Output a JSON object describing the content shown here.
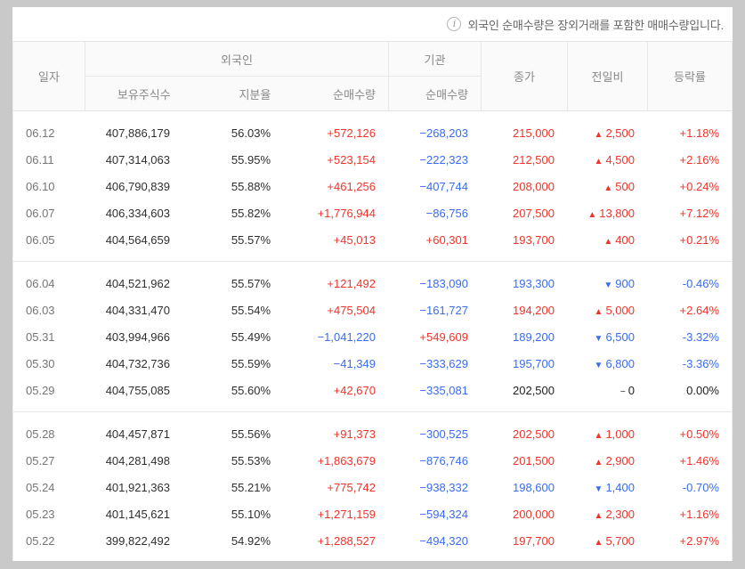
{
  "notice": {
    "icon_glyph": "i",
    "text": "외국인 순매수량은 장외거래를 포함한 매매수량입니다."
  },
  "colors": {
    "up": "#f0342a",
    "down": "#3a6cf3",
    "flat": "#222222"
  },
  "table": {
    "headers": {
      "date": "일자",
      "foreigner_group": "외국인",
      "institution_group": "기관",
      "shares_held": "보유주식수",
      "ownership_ratio": "지분율",
      "net_buy_foreigner": "순매수량",
      "net_buy_institution": "순매수량",
      "close": "종가",
      "change": "전일비",
      "change_rate": "등락률"
    },
    "symbols": {
      "up": "▲",
      "down": "▼",
      "flat": "−"
    },
    "groups": [
      {
        "rows": [
          {
            "date": "06.12",
            "shares": "407,886,179",
            "ratio": "56.03%",
            "foreign_net": {
              "text": "+572,126",
              "trend": "up"
            },
            "institution_net": {
              "text": "−268,203",
              "trend": "down"
            },
            "close": {
              "text": "215,000",
              "trend": "up"
            },
            "change": {
              "text": "2,500",
              "trend": "up"
            },
            "rate": {
              "text": "+1.18%",
              "trend": "up"
            }
          },
          {
            "date": "06.11",
            "shares": "407,314,063",
            "ratio": "55.95%",
            "foreign_net": {
              "text": "+523,154",
              "trend": "up"
            },
            "institution_net": {
              "text": "−222,323",
              "trend": "down"
            },
            "close": {
              "text": "212,500",
              "trend": "up"
            },
            "change": {
              "text": "4,500",
              "trend": "up"
            },
            "rate": {
              "text": "+2.16%",
              "trend": "up"
            }
          },
          {
            "date": "06.10",
            "shares": "406,790,839",
            "ratio": "55.88%",
            "foreign_net": {
              "text": "+461,256",
              "trend": "up"
            },
            "institution_net": {
              "text": "−407,744",
              "trend": "down"
            },
            "close": {
              "text": "208,000",
              "trend": "up"
            },
            "change": {
              "text": "500",
              "trend": "up"
            },
            "rate": {
              "text": "+0.24%",
              "trend": "up"
            }
          },
          {
            "date": "06.07",
            "shares": "406,334,603",
            "ratio": "55.82%",
            "foreign_net": {
              "text": "+1,776,944",
              "trend": "up"
            },
            "institution_net": {
              "text": "−86,756",
              "trend": "down"
            },
            "close": {
              "text": "207,500",
              "trend": "up"
            },
            "change": {
              "text": "13,800",
              "trend": "up"
            },
            "rate": {
              "text": "+7.12%",
              "trend": "up"
            }
          },
          {
            "date": "06.05",
            "shares": "404,564,659",
            "ratio": "55.57%",
            "foreign_net": {
              "text": "+45,013",
              "trend": "up"
            },
            "institution_net": {
              "text": "+60,301",
              "trend": "up"
            },
            "close": {
              "text": "193,700",
              "trend": "up"
            },
            "change": {
              "text": "400",
              "trend": "up"
            },
            "rate": {
              "text": "+0.21%",
              "trend": "up"
            }
          }
        ]
      },
      {
        "rows": [
          {
            "date": "06.04",
            "shares": "404,521,962",
            "ratio": "55.57%",
            "foreign_net": {
              "text": "+121,492",
              "trend": "up"
            },
            "institution_net": {
              "text": "−183,090",
              "trend": "down"
            },
            "close": {
              "text": "193,300",
              "trend": "down"
            },
            "change": {
              "text": "900",
              "trend": "down"
            },
            "rate": {
              "text": "-0.46%",
              "trend": "down"
            }
          },
          {
            "date": "06.03",
            "shares": "404,331,470",
            "ratio": "55.54%",
            "foreign_net": {
              "text": "+475,504",
              "trend": "up"
            },
            "institution_net": {
              "text": "−161,727",
              "trend": "down"
            },
            "close": {
              "text": "194,200",
              "trend": "up"
            },
            "change": {
              "text": "5,000",
              "trend": "up"
            },
            "rate": {
              "text": "+2.64%",
              "trend": "up"
            }
          },
          {
            "date": "05.31",
            "shares": "403,994,966",
            "ratio": "55.49%",
            "foreign_net": {
              "text": "−1,041,220",
              "trend": "down"
            },
            "institution_net": {
              "text": "+549,609",
              "trend": "up"
            },
            "close": {
              "text": "189,200",
              "trend": "down"
            },
            "change": {
              "text": "6,500",
              "trend": "down"
            },
            "rate": {
              "text": "-3.32%",
              "trend": "down"
            }
          },
          {
            "date": "05.30",
            "shares": "404,732,736",
            "ratio": "55.59%",
            "foreign_net": {
              "text": "−41,349",
              "trend": "down"
            },
            "institution_net": {
              "text": "−333,629",
              "trend": "down"
            },
            "close": {
              "text": "195,700",
              "trend": "down"
            },
            "change": {
              "text": "6,800",
              "trend": "down"
            },
            "rate": {
              "text": "-3.36%",
              "trend": "down"
            }
          },
          {
            "date": "05.29",
            "shares": "404,755,085",
            "ratio": "55.60%",
            "foreign_net": {
              "text": "+42,670",
              "trend": "up"
            },
            "institution_net": {
              "text": "−335,081",
              "trend": "down"
            },
            "close": {
              "text": "202,500",
              "trend": "flat"
            },
            "change": {
              "text": "0",
              "trend": "flat"
            },
            "rate": {
              "text": "0.00%",
              "trend": "flat"
            }
          }
        ]
      },
      {
        "rows": [
          {
            "date": "05.28",
            "shares": "404,457,871",
            "ratio": "55.56%",
            "foreign_net": {
              "text": "+91,373",
              "trend": "up"
            },
            "institution_net": {
              "text": "−300,525",
              "trend": "down"
            },
            "close": {
              "text": "202,500",
              "trend": "up"
            },
            "change": {
              "text": "1,000",
              "trend": "up"
            },
            "rate": {
              "text": "+0.50%",
              "trend": "up"
            }
          },
          {
            "date": "05.27",
            "shares": "404,281,498",
            "ratio": "55.53%",
            "foreign_net": {
              "text": "+1,863,679",
              "trend": "up"
            },
            "institution_net": {
              "text": "−876,746",
              "trend": "down"
            },
            "close": {
              "text": "201,500",
              "trend": "up"
            },
            "change": {
              "text": "2,900",
              "trend": "up"
            },
            "rate": {
              "text": "+1.46%",
              "trend": "up"
            }
          },
          {
            "date": "05.24",
            "shares": "401,921,363",
            "ratio": "55.21%",
            "foreign_net": {
              "text": "+775,742",
              "trend": "up"
            },
            "institution_net": {
              "text": "−938,332",
              "trend": "down"
            },
            "close": {
              "text": "198,600",
              "trend": "down"
            },
            "change": {
              "text": "1,400",
              "trend": "down"
            },
            "rate": {
              "text": "-0.70%",
              "trend": "down"
            }
          },
          {
            "date": "05.23",
            "shares": "401,145,621",
            "ratio": "55.10%",
            "foreign_net": {
              "text": "+1,271,159",
              "trend": "up"
            },
            "institution_net": {
              "text": "−594,324",
              "trend": "down"
            },
            "close": {
              "text": "200,000",
              "trend": "up"
            },
            "change": {
              "text": "2,300",
              "trend": "up"
            },
            "rate": {
              "text": "+1.16%",
              "trend": "up"
            }
          },
          {
            "date": "05.22",
            "shares": "399,822,492",
            "ratio": "54.92%",
            "foreign_net": {
              "text": "+1,288,527",
              "trend": "up"
            },
            "institution_net": {
              "text": "−494,320",
              "trend": "down"
            },
            "close": {
              "text": "197,700",
              "trend": "up"
            },
            "change": {
              "text": "5,700",
              "trend": "up"
            },
            "rate": {
              "text": "+2.97%",
              "trend": "up"
            }
          }
        ]
      }
    ]
  }
}
